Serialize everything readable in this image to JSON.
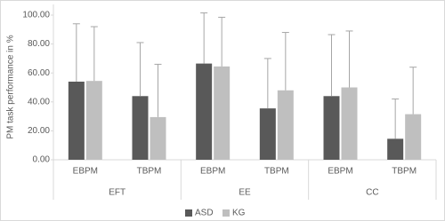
{
  "chart_data": {
    "type": "bar",
    "y_label": "PM task performance in %",
    "categories": [
      "EBPM",
      "TBPM",
      "EBPM",
      "TBPM",
      "EBPM",
      "TBPM"
    ],
    "groups": [
      "EFT",
      "EE",
      "CC"
    ],
    "series": [
      {
        "name": "ASD",
        "color": "#595959",
        "values": [
          54,
          44,
          66.5,
          35.5,
          44,
          14.5
        ],
        "errors": [
          40,
          37,
          35,
          34.5,
          42.5,
          27.5
        ]
      },
      {
        "name": "KG",
        "color": "#bfbfbf",
        "values": [
          54.5,
          29.5,
          64.5,
          48,
          50,
          31.5
        ],
        "errors": [
          37.5,
          36.5,
          34,
          40,
          39,
          32.5
        ]
      }
    ],
    "ylim": [
      0,
      100
    ],
    "yticks": [
      {
        "value": 0,
        "label": "0.00"
      },
      {
        "value": 20,
        "label": "20.00"
      },
      {
        "value": 40,
        "label": "40.00"
      },
      {
        "value": 60,
        "label": "60.00"
      },
      {
        "value": 80,
        "label": "80.00"
      },
      {
        "value": 100,
        "label": "100.00"
      }
    ],
    "legend": "bottom"
  }
}
